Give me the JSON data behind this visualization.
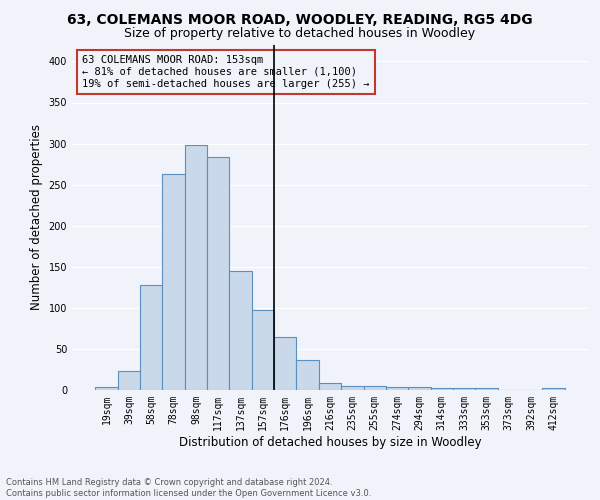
{
  "title1": "63, COLEMANS MOOR ROAD, WOODLEY, READING, RG5 4DG",
  "title2": "Size of property relative to detached houses in Woodley",
  "xlabel": "Distribution of detached houses by size in Woodley",
  "ylabel": "Number of detached properties",
  "footnote": "Contains HM Land Registry data © Crown copyright and database right 2024.\nContains public sector information licensed under the Open Government Licence v3.0.",
  "bar_labels": [
    "19sqm",
    "39sqm",
    "58sqm",
    "78sqm",
    "98sqm",
    "117sqm",
    "137sqm",
    "157sqm",
    "176sqm",
    "196sqm",
    "216sqm",
    "235sqm",
    "255sqm",
    "274sqm",
    "294sqm",
    "314sqm",
    "333sqm",
    "353sqm",
    "373sqm",
    "392sqm",
    "412sqm"
  ],
  "bar_values": [
    4,
    23,
    128,
    263,
    298,
    284,
    145,
    98,
    65,
    37,
    8,
    5,
    5,
    4,
    4,
    3,
    3,
    3,
    0,
    0,
    3
  ],
  "bar_color": "#c9d9ea",
  "bar_edge_color": "#5a8fc0",
  "vline_color": "black",
  "annotation_box_text": "63 COLEMANS MOOR ROAD: 153sqm\n← 81% of detached houses are smaller (1,100)\n19% of semi-detached houses are larger (255) →",
  "box_edge_color": "#c0392b",
  "ylim": [
    0,
    420
  ],
  "yticks": [
    0,
    50,
    100,
    150,
    200,
    250,
    300,
    350,
    400
  ],
  "bg_color": "#f0f4fa",
  "grid_color": "#ffffff",
  "title1_fontsize": 10,
  "title2_fontsize": 9,
  "xlabel_fontsize": 8.5,
  "ylabel_fontsize": 8.5,
  "tick_fontsize": 7,
  "annotation_fontsize": 7.5
}
